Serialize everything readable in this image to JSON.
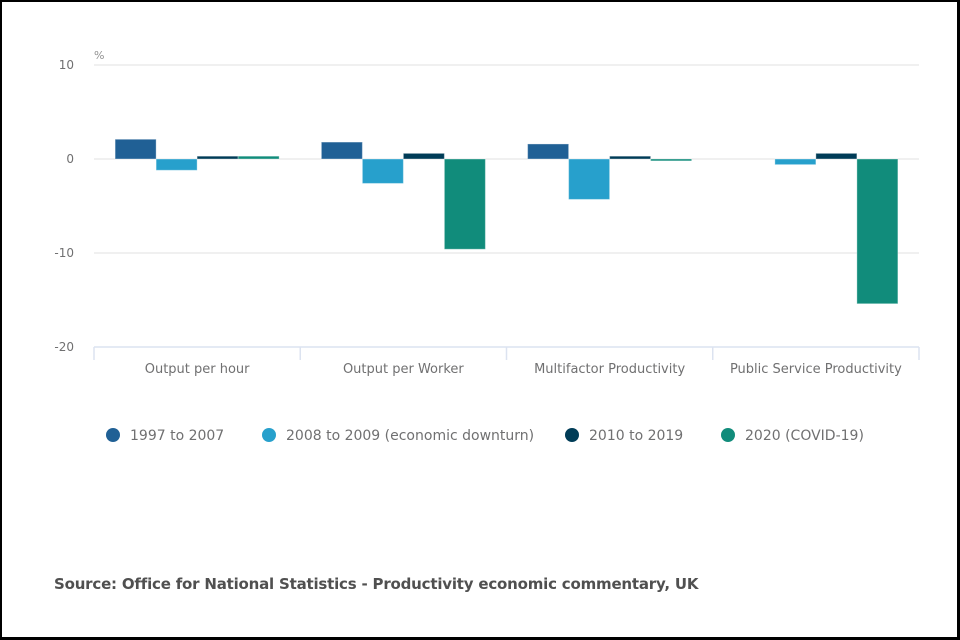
{
  "chart_data": {
    "type": "bar",
    "title": "",
    "xlabel": "",
    "ylabel": "%",
    "ylim": [
      -20,
      10
    ],
    "yticks": [
      10,
      0,
      -10,
      -20
    ],
    "grid": true,
    "legend_position": "bottom",
    "categories": [
      "Output per hour",
      "Output per Worker",
      "Multifactor Productivity",
      "Public Service Productivity"
    ],
    "series": [
      {
        "name": "1997 to 2007",
        "color": "#206095",
        "values": [
          2.1,
          1.8,
          1.6,
          0.0
        ]
      },
      {
        "name": "2008 to 2009 (economic downturn)",
        "color": "#27a0cc",
        "values": [
          -1.2,
          -2.6,
          -4.3,
          -0.6
        ]
      },
      {
        "name": "2010 to 2019",
        "color": "#003c57",
        "values": [
          0.3,
          0.6,
          0.3,
          0.6
        ]
      },
      {
        "name": "2020 (COVID-19)",
        "color": "#118c7b",
        "values": [
          0.3,
          -9.6,
          -0.2,
          -15.4
        ]
      }
    ]
  },
  "source_text": "Source: Office for National Statistics - Productivity economic commentary, UK"
}
